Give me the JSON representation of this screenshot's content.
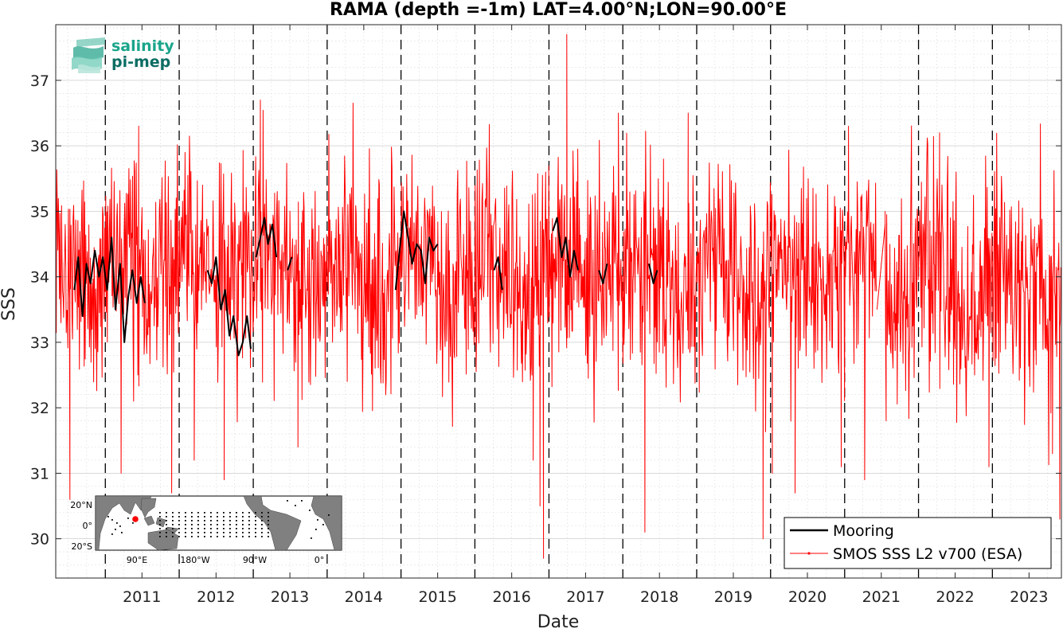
{
  "logo": {
    "line1": "salinity",
    "line2": "pi-mep",
    "color1": "#1aa58a",
    "color2": "#0b6d63"
  },
  "inset_map": {
    "lat_labels": [
      "20°N",
      "0°",
      "20°S"
    ],
    "lon_labels": [
      "90°E",
      "180°W",
      "90°W",
      "0°"
    ],
    "ocean_color": "#ffffff",
    "land_color": "#808080",
    "site_color": "#ff0000"
  },
  "chart_data": {
    "type": "line",
    "title": "RAMA (depth =-1m) LAT=4.00°N;LON=90.00°E",
    "xlabel": "Date",
    "ylabel": "SSS",
    "xlim": [
      "2010-05-01",
      "2023-12-08"
    ],
    "ylim": [
      29.4,
      37.85
    ],
    "yticks": [
      30,
      31,
      32,
      33,
      34,
      35,
      36,
      37
    ],
    "xticks": [
      "2011",
      "2012",
      "2013",
      "2014",
      "2015",
      "2016",
      "2017",
      "2018",
      "2019",
      "2020",
      "2021",
      "2022",
      "2023"
    ],
    "year_boundaries": [
      "2011-01-01",
      "2012-01-01",
      "2013-01-01",
      "2014-01-01",
      "2015-01-01",
      "2016-01-01",
      "2017-01-01",
      "2018-01-01",
      "2019-01-01",
      "2020-01-01",
      "2021-01-01",
      "2022-01-01",
      "2023-01-01"
    ],
    "grid": true,
    "minor_grid": true,
    "legend_position": "bottom-right",
    "series": [
      {
        "name": "Mooring",
        "color": "#000000",
        "points": [
          [
            "2010-08-01",
            33.8
          ],
          [
            "2010-08-20",
            34.3
          ],
          [
            "2010-09-10",
            33.4
          ],
          [
            "2010-09-30",
            34.2
          ],
          [
            "2010-10-20",
            33.9
          ],
          [
            "2010-11-10",
            34.4
          ],
          [
            "2010-12-01",
            34.0
          ],
          [
            "2010-12-20",
            34.3
          ],
          [
            "2011-01-10",
            33.8
          ],
          [
            "2011-02-01",
            34.6
          ],
          [
            "2011-02-20",
            33.5
          ],
          [
            "2011-03-15",
            34.2
          ],
          [
            "2011-04-05",
            33.0
          ],
          [
            "2011-04-25",
            33.7
          ],
          [
            "2011-05-15",
            34.1
          ],
          [
            "2011-06-05",
            33.6
          ],
          [
            "2011-06-25",
            34.0
          ],
          [
            "2011-07-15",
            33.6
          ],
          null,
          [
            "2012-05-20",
            34.1
          ],
          [
            "2012-06-10",
            33.9
          ],
          [
            "2012-07-01",
            34.3
          ],
          [
            "2012-07-25",
            33.5
          ],
          [
            "2012-08-15",
            33.8
          ],
          [
            "2012-09-05",
            33.1
          ],
          [
            "2012-09-25",
            33.4
          ],
          [
            "2012-10-20",
            32.8
          ],
          [
            "2012-11-10",
            33.0
          ],
          [
            "2012-12-01",
            33.4
          ],
          [
            "2012-12-20",
            32.9
          ],
          null,
          [
            "2013-01-15",
            34.3
          ],
          [
            "2013-02-05",
            34.6
          ],
          [
            "2013-02-25",
            34.9
          ],
          [
            "2013-03-15",
            34.5
          ],
          [
            "2013-04-05",
            34.8
          ],
          [
            "2013-04-25",
            34.3
          ],
          null,
          [
            "2013-06-20",
            34.1
          ],
          [
            "2013-07-10",
            34.3
          ],
          null,
          [
            "2014-12-05",
            33.8
          ],
          [
            "2014-12-25",
            34.4
          ],
          [
            "2015-01-15",
            35.0
          ],
          [
            "2015-02-05",
            34.6
          ],
          [
            "2015-02-25",
            34.2
          ],
          [
            "2015-03-20",
            34.5
          ],
          [
            "2015-04-10",
            34.4
          ],
          [
            "2015-05-01",
            33.9
          ],
          [
            "2015-05-20",
            34.6
          ],
          [
            "2015-06-10",
            34.4
          ],
          [
            "2015-07-01",
            34.5
          ],
          null,
          [
            "2016-04-05",
            34.1
          ],
          [
            "2016-04-25",
            34.3
          ],
          [
            "2016-05-15",
            33.8
          ],
          null,
          [
            "2017-01-20",
            34.7
          ],
          [
            "2017-02-10",
            34.9
          ],
          [
            "2017-03-05",
            34.3
          ],
          [
            "2017-03-25",
            34.6
          ],
          [
            "2017-04-15",
            34.0
          ],
          [
            "2017-05-05",
            34.4
          ],
          [
            "2017-05-25",
            34.1
          ],
          null,
          [
            "2017-09-05",
            34.1
          ],
          [
            "2017-09-25",
            33.9
          ],
          [
            "2017-10-15",
            34.2
          ],
          null,
          [
            "2018-05-10",
            34.2
          ],
          [
            "2018-06-01",
            33.9
          ],
          [
            "2018-06-20",
            34.1
          ]
        ]
      },
      {
        "name": "SMOS SSS L2 v700 (ESA)",
        "color": "#ff0000",
        "segments": [
          {
            "start": "2010-05-01",
            "end": "2021-06-10",
            "mean": 34.05,
            "amplitude": 0.85
          },
          {
            "start": "2021-07-20",
            "end": "2023-12-06",
            "mean": 34.05,
            "amplitude": 0.85
          }
        ],
        "gap_connector": [
          [
            "2021-06-10",
            33.5
          ],
          [
            "2021-07-20",
            34.8
          ]
        ],
        "extremes": [
          [
            "2010-07-10",
            30.6
          ],
          [
            "2011-03-20",
            31.0
          ],
          [
            "2011-06-15",
            36.3
          ],
          [
            "2011-11-25",
            30.7
          ],
          [
            "2012-01-30",
            35.9
          ],
          [
            "2012-03-15",
            31.2
          ],
          [
            "2012-08-10",
            30.9
          ],
          [
            "2013-02-05",
            36.7
          ],
          [
            "2013-08-10",
            31.4
          ],
          [
            "2016-10-15",
            31.2
          ],
          [
            "2016-11-18",
            30.5
          ],
          [
            "2016-12-05",
            29.7
          ],
          [
            "2017-03-30",
            37.7
          ],
          [
            "2017-12-10",
            36.5
          ],
          [
            "2018-04-20",
            30.1
          ],
          [
            "2018-11-20",
            36.5
          ],
          [
            "2019-11-25",
            30.0
          ],
          [
            "2020-01-10",
            31.0
          ],
          [
            "2020-05-01",
            30.7
          ],
          [
            "2020-12-15",
            31.1
          ],
          [
            "2021-01-20",
            36.3
          ],
          [
            "2021-04-10",
            30.9
          ],
          [
            "2021-07-25",
            31.8
          ],
          [
            "2022-04-15",
            36.2
          ],
          [
            "2022-12-15",
            31.1
          ],
          [
            "2023-10-25",
            31.3
          ],
          [
            "2023-11-30",
            30.3
          ]
        ]
      }
    ]
  }
}
